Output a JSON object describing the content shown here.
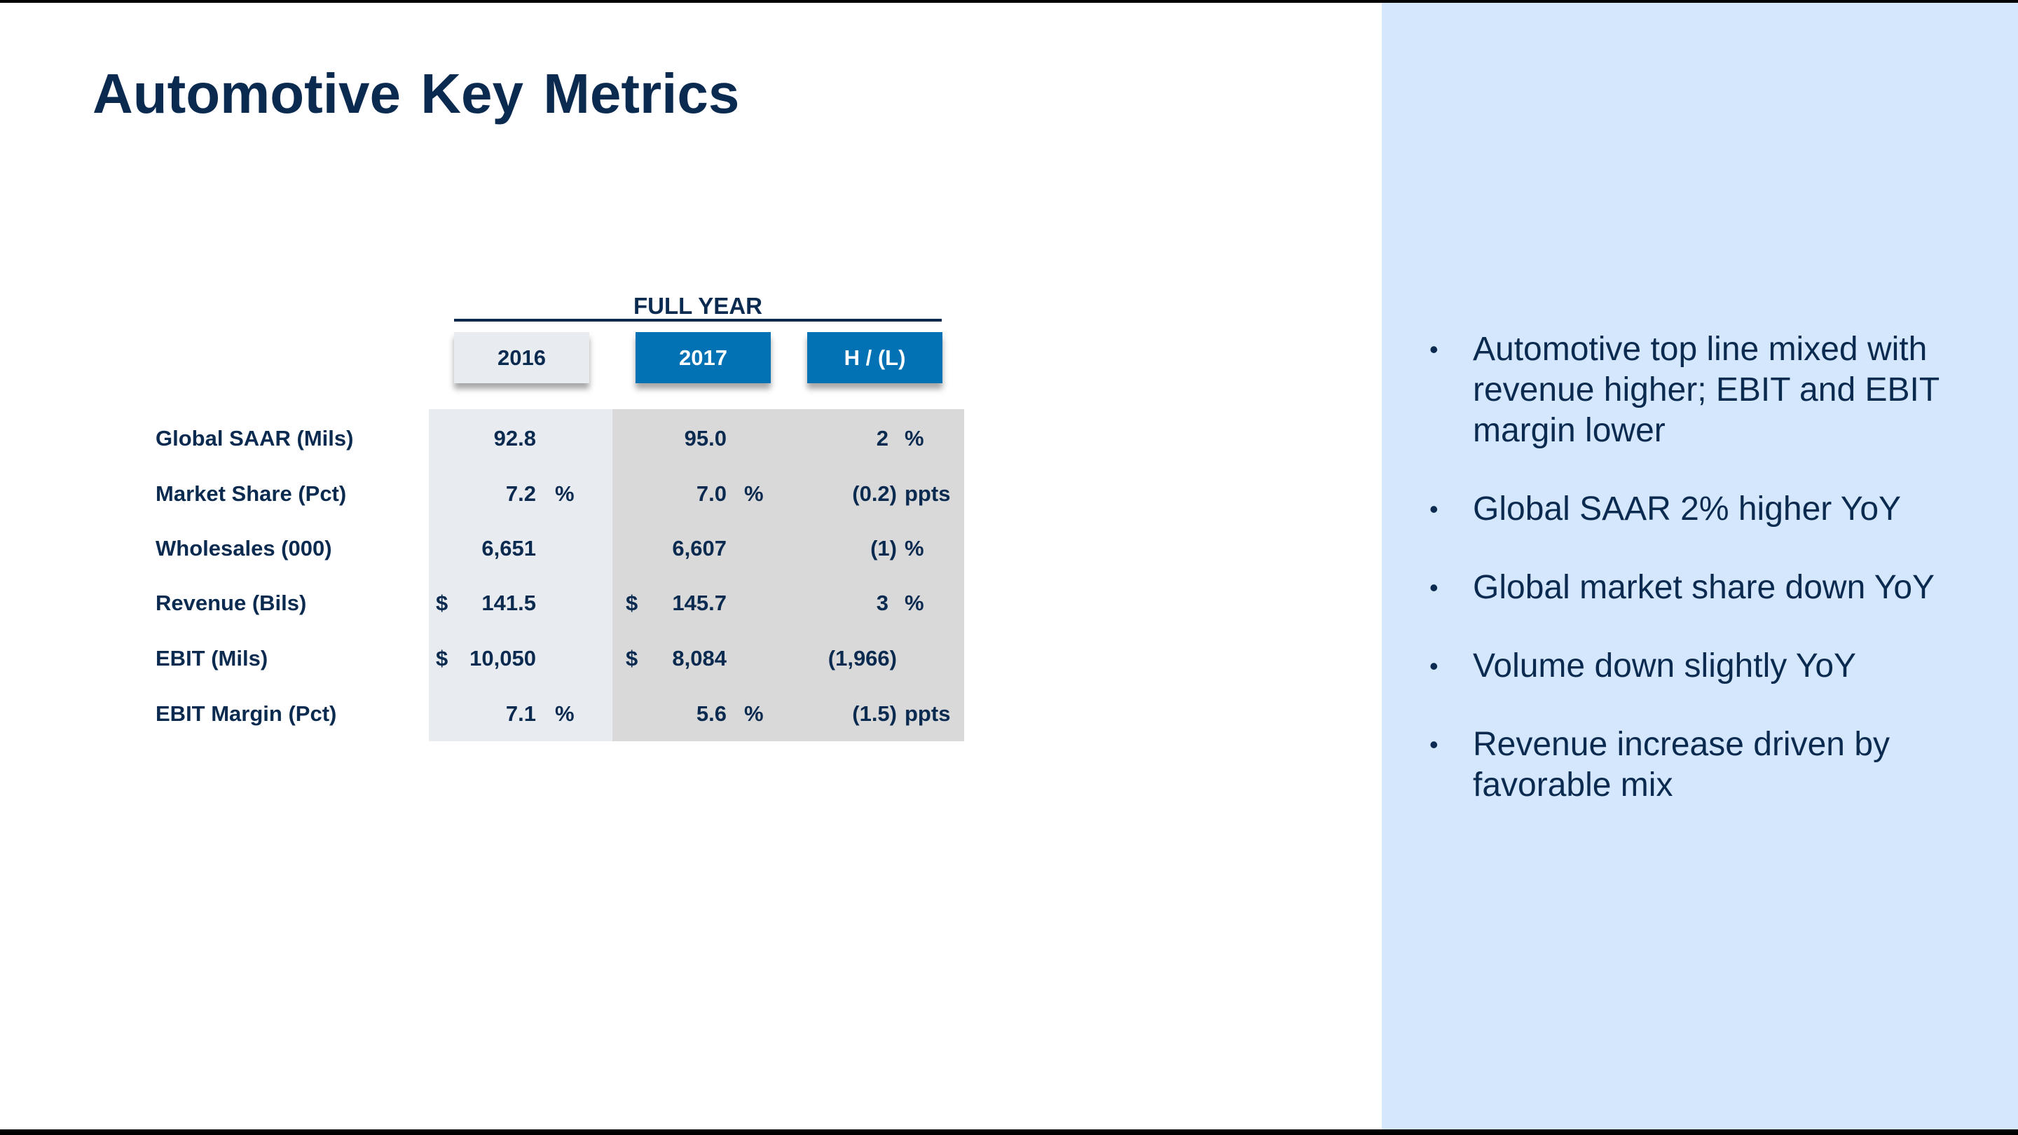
{
  "title": "Automotive Key Metrics",
  "table": {
    "group_header": "FULL YEAR",
    "columns": [
      "2016",
      "2017",
      "H / (L)"
    ],
    "rows": [
      {
        "label": "Global SAAR (Mils)",
        "c2016": {
          "cur": "",
          "value": "92.8",
          "unit": ""
        },
        "c2017": {
          "cur": "",
          "value": "95.0",
          "unit": ""
        },
        "hl": {
          "value": "2",
          "unit": "%"
        }
      },
      {
        "label": "Market Share (Pct)",
        "c2016": {
          "cur": "",
          "value": "7.2",
          "unit": "%"
        },
        "c2017": {
          "cur": "",
          "value": "7.0",
          "unit": "%"
        },
        "hl": {
          "value": "(0.2)",
          "unit": "ppts"
        }
      },
      {
        "label": "Wholesales (000)",
        "c2016": {
          "cur": "",
          "value": "6,651",
          "unit": ""
        },
        "c2017": {
          "cur": "",
          "value": "6,607",
          "unit": ""
        },
        "hl": {
          "value": "(1)",
          "unit": "%"
        }
      },
      {
        "label": "Revenue (Bils)",
        "c2016": {
          "cur": "$",
          "value": "141.5",
          "unit": ""
        },
        "c2017": {
          "cur": "$",
          "value": "145.7",
          "unit": ""
        },
        "hl": {
          "value": "3",
          "unit": "%"
        }
      },
      {
        "label": "EBIT (Mils)",
        "c2016": {
          "cur": "$",
          "value": "10,050",
          "unit": ""
        },
        "c2017": {
          "cur": "$",
          "value": "8,084",
          "unit": ""
        },
        "hl": {
          "value": "(1,966)",
          "unit": ""
        }
      },
      {
        "label": "EBIT Margin (Pct)",
        "c2016": {
          "cur": "",
          "value": "7.1",
          "unit": "%"
        },
        "c2017": {
          "cur": "",
          "value": "5.6",
          "unit": "%"
        },
        "hl": {
          "value": "(1.5)",
          "unit": "ppts"
        }
      }
    ]
  },
  "bullets": [
    "Automotive top line mixed with revenue higher; EBIT and EBIT margin lower",
    "Global SAAR 2% higher YoY",
    "Global market share down YoY",
    "Volume down slightly YoY",
    "Revenue increase driven by favorable mix"
  ],
  "colors": {
    "navy": "#0b2a50",
    "blue": "#0272b4",
    "panel": "#d5e7fc"
  }
}
